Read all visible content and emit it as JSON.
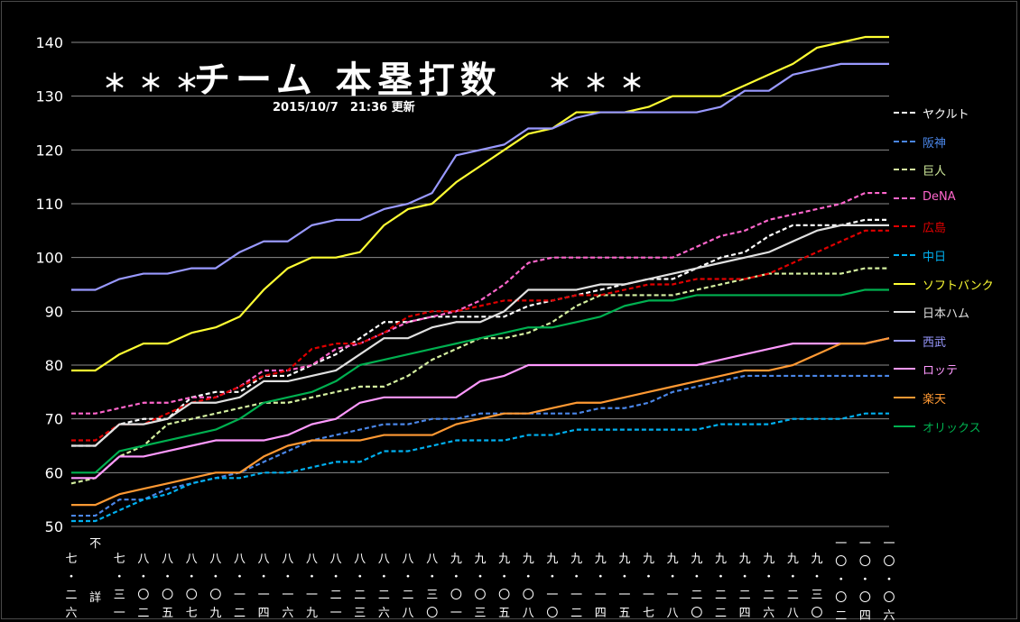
{
  "header": {
    "stars_left": "＊＊＊",
    "title": "チーム 本塁打数",
    "stars_right": "＊＊＊",
    "subtitle": "2015/10/7　21:36 更新"
  },
  "chart_data": {
    "type": "line",
    "title": "チーム 本塁打数",
    "subtitle": "2015/10/7　21:36 更新",
    "ylim": [
      50,
      140
    ],
    "yticks": [
      50,
      60,
      70,
      80,
      90,
      100,
      110,
      120,
      130,
      140
    ],
    "xticks": [
      "七・二六",
      "不詳",
      "七・三一",
      "八・〇二",
      "八・〇五",
      "八・〇七",
      "八・〇九",
      "八・一二",
      "八・一四",
      "八・一六",
      "八・一九",
      "八・二一",
      "八・二三",
      "八・二六",
      "八・二八",
      "八・三〇",
      "九・〇一",
      "九・〇三",
      "九・〇五",
      "九・〇八",
      "九・一〇",
      "九・一二",
      "九・一四",
      "九・一五",
      "九・一七",
      "九・一八",
      "九・二〇",
      "九・二二",
      "九・二四",
      "九・二六",
      "九・二八",
      "九・三〇",
      "一〇・〇二",
      "一〇・〇四",
      "一〇・〇六"
    ],
    "grid": true,
    "legend_position": "right",
    "series": [
      {
        "name": "ヤクルト",
        "color": "#ffffff",
        "dash": true,
        "values": [
          65,
          65,
          69,
          70,
          70,
          74,
          75,
          75,
          78,
          78,
          80,
          82,
          85,
          88,
          88,
          89,
          89,
          89,
          89,
          91,
          92,
          93,
          94,
          95,
          96,
          96,
          98,
          100,
          101,
          104,
          106,
          106,
          106,
          107,
          107
        ]
      },
      {
        "name": "阪神",
        "color": "#4a86e8",
        "dash": true,
        "values": [
          52,
          52,
          55,
          55,
          57,
          58,
          59,
          60,
          62,
          64,
          66,
          67,
          68,
          69,
          69,
          70,
          70,
          71,
          71,
          71,
          71,
          71,
          72,
          72,
          73,
          75,
          76,
          77,
          78,
          78,
          78,
          78,
          78,
          78,
          78
        ]
      },
      {
        "name": "巨人",
        "color": "#d5f0a0",
        "dash": true,
        "values": [
          58,
          59,
          63,
          65,
          69,
          70,
          71,
          72,
          73,
          73,
          74,
          75,
          76,
          76,
          78,
          81,
          83,
          85,
          85,
          86,
          88,
          91,
          93,
          93,
          93,
          93,
          94,
          95,
          96,
          97,
          97,
          97,
          97,
          98,
          98
        ]
      },
      {
        "name": "DeNA",
        "color": "#ff66cc",
        "dash": true,
        "values": [
          71,
          71,
          72,
          73,
          73,
          74,
          74,
          76,
          79,
          79,
          80,
          83,
          84,
          86,
          88,
          89,
          90,
          92,
          95,
          99,
          100,
          100,
          100,
          100,
          100,
          100,
          102,
          104,
          105,
          107,
          108,
          109,
          110,
          112,
          112
        ]
      },
      {
        "name": "広島",
        "color": "#e00000",
        "dash": true,
        "values": [
          66,
          66,
          69,
          69,
          71,
          73,
          74,
          76,
          78,
          79,
          83,
          84,
          84,
          86,
          89,
          90,
          90,
          91,
          92,
          92,
          92,
          93,
          93,
          94,
          95,
          95,
          96,
          96,
          96,
          97,
          99,
          101,
          103,
          105,
          105
        ]
      },
      {
        "name": "中日",
        "color": "#00b0f0",
        "dash": true,
        "values": [
          51,
          51,
          53,
          55,
          56,
          58,
          59,
          59,
          60,
          60,
          61,
          62,
          62,
          64,
          64,
          65,
          66,
          66,
          66,
          67,
          67,
          68,
          68,
          68,
          68,
          68,
          68,
          69,
          69,
          69,
          70,
          70,
          70,
          71,
          71
        ]
      },
      {
        "name": "ソフトバンク",
        "color": "#ffff33",
        "dash": false,
        "values": [
          79,
          79,
          82,
          84,
          84,
          86,
          87,
          89,
          94,
          98,
          100,
          100,
          101,
          106,
          109,
          110,
          114,
          117,
          120,
          123,
          124,
          127,
          127,
          127,
          128,
          130,
          130,
          130,
          132,
          134,
          136,
          139,
          140,
          141,
          141
        ]
      },
      {
        "name": "日本ハム",
        "color": "#e0e0e0",
        "dash": false,
        "values": [
          65,
          65,
          69,
          69,
          70,
          73,
          73,
          74,
          77,
          77,
          78,
          79,
          82,
          85,
          85,
          87,
          88,
          88,
          90,
          94,
          94,
          94,
          95,
          95,
          96,
          97,
          98,
          99,
          100,
          101,
          103,
          105,
          106,
          106,
          106
        ]
      },
      {
        "name": "西武",
        "color": "#9999ff",
        "dash": false,
        "values": [
          94,
          94,
          96,
          97,
          97,
          98,
          98,
          101,
          103,
          103,
          106,
          107,
          107,
          109,
          110,
          112,
          119,
          120,
          121,
          124,
          124,
          126,
          127,
          127,
          127,
          127,
          127,
          128,
          131,
          131,
          134,
          135,
          136,
          136,
          136
        ]
      },
      {
        "name": "ロッテ",
        "color": "#ff99ff",
        "dash": false,
        "values": [
          59,
          59,
          63,
          63,
          64,
          65,
          66,
          66,
          66,
          67,
          69,
          70,
          73,
          74,
          74,
          74,
          74,
          77,
          78,
          80,
          80,
          80,
          80,
          80,
          80,
          80,
          80,
          81,
          82,
          83,
          84,
          84,
          84,
          84,
          85
        ]
      },
      {
        "name": "楽天",
        "color": "#ff9933",
        "dash": false,
        "values": [
          54,
          54,
          56,
          57,
          58,
          59,
          60,
          60,
          63,
          65,
          66,
          66,
          66,
          67,
          67,
          67,
          69,
          70,
          71,
          71,
          72,
          73,
          73,
          74,
          75,
          76,
          77,
          78,
          79,
          79,
          80,
          82,
          84,
          84,
          85
        ]
      },
      {
        "name": "オリックス",
        "color": "#00b050",
        "dash": false,
        "values": [
          60,
          60,
          64,
          65,
          66,
          67,
          68,
          70,
          73,
          74,
          75,
          77,
          80,
          81,
          82,
          83,
          84,
          85,
          86,
          87,
          87,
          88,
          89,
          91,
          92,
          92,
          93,
          93,
          93,
          93,
          93,
          93,
          93,
          94,
          94
        ]
      }
    ]
  }
}
